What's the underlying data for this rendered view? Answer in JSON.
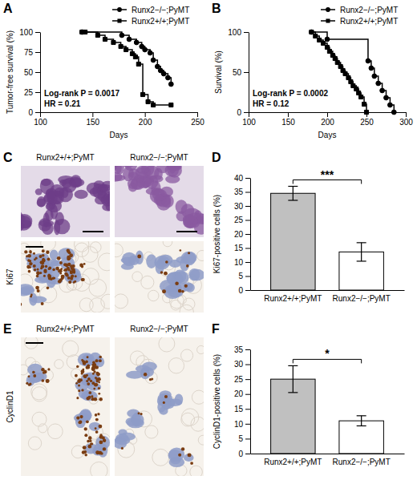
{
  "chart_data": [
    {
      "panel": "A",
      "type": "line",
      "line_style": "step",
      "xlabel": "Days",
      "ylabel": "Tumor-free survival (%)",
      "xlim": [
        100,
        250
      ],
      "xticks": [
        100,
        150,
        200,
        250
      ],
      "ylim": [
        0,
        100
      ],
      "yticks": [
        0,
        25,
        50,
        75,
        100
      ],
      "legend": "top-right",
      "annotations": [
        "Log-rank P = 0.0017",
        "HR = 0.21"
      ],
      "series": [
        {
          "name": "Runx2−/−;PyMT",
          "color": "#000000",
          "marker": "circle",
          "x": [
            140,
            178,
            185,
            192,
            197,
            200,
            205,
            208,
            212,
            215,
            218,
            222,
            225
          ],
          "values": [
            100,
            96,
            91,
            87,
            82,
            78,
            74,
            65,
            57,
            52,
            48,
            43,
            35
          ]
        },
        {
          "name": "Runx2+/+;PyMT",
          "color": "#000000",
          "marker": "square",
          "x": [
            140,
            143,
            155,
            162,
            170,
            177,
            182,
            188,
            191,
            194,
            198,
            203,
            208,
            225
          ],
          "values": [
            100,
            100,
            96,
            91,
            87,
            82,
            78,
            73,
            69,
            60,
            22,
            13,
            9,
            9
          ]
        }
      ]
    },
    {
      "panel": "B",
      "type": "line",
      "line_style": "step",
      "xlabel": "Days",
      "ylabel": "Survival (%)",
      "xlim": [
        100,
        300
      ],
      "xticks": [
        100,
        150,
        200,
        250,
        300
      ],
      "ylim": [
        0,
        100
      ],
      "yticks": [
        0,
        50,
        100
      ],
      "legend": "top-right",
      "annotations": [
        "Log-rank P = 0.0002",
        "HR = 0.12"
      ],
      "series": [
        {
          "name": "Runx2−/−;PyMT",
          "color": "#000000",
          "marker": "circle",
          "x": [
            180,
            200,
            252,
            256,
            260,
            265,
            270,
            275,
            280,
            285
          ],
          "values": [
            100,
            91,
            64,
            55,
            45,
            36,
            27,
            18,
            9,
            0
          ]
        },
        {
          "name": "Runx2+/+;PyMT",
          "color": "#000000",
          "marker": "square",
          "x": [
            180,
            185,
            190,
            195,
            200,
            203,
            207,
            210,
            213,
            217,
            220,
            223,
            227,
            230,
            233,
            237,
            240,
            243,
            247,
            250
          ],
          "values": [
            100,
            95,
            90,
            86,
            81,
            76,
            71,
            67,
            62,
            57,
            52,
            48,
            43,
            38,
            33,
            29,
            24,
            19,
            10,
            0
          ]
        }
      ]
    },
    {
      "panel": "D",
      "type": "bar",
      "ylabel": "Ki67-positive cells (%)",
      "categories": [
        "Runx2+/+;PyMT",
        "Runx2−/−;PyMT"
      ],
      "values": [
        34.5,
        13.6
      ],
      "errors": [
        2.5,
        3.3
      ],
      "colors": [
        "#c0c0c0",
        "#ffffff"
      ],
      "ylim": [
        0,
        40
      ],
      "yticks": [
        0,
        5,
        10,
        15,
        20,
        25,
        30,
        35,
        40
      ],
      "annotations": [
        "***"
      ]
    },
    {
      "panel": "F",
      "type": "bar",
      "ylabel": "CyclinD1-positive cells (%)",
      "categories": [
        "Runx2+/+;PyMT",
        "Runx2−/−;PyMT"
      ],
      "values": [
        25,
        11
      ],
      "errors": [
        4.5,
        1.7
      ],
      "colors": [
        "#c0c0c0",
        "#ffffff"
      ],
      "ylim": [
        0,
        35
      ],
      "yticks": [
        0,
        5,
        10,
        15,
        20,
        25,
        30,
        35
      ],
      "annotations": [
        "*"
      ]
    }
  ],
  "image_panels": [
    {
      "panel": "C",
      "columns": [
        "Runx2+/+;PyMT",
        "Runx2−/−;PyMT"
      ],
      "row_labels": [
        null,
        "Ki67"
      ]
    },
    {
      "panel": "E",
      "columns": [
        "Runx2+/+;PyMT",
        "Runx2−/−;PyMT"
      ],
      "row_labels": [
        "CyclinD1"
      ]
    }
  ]
}
